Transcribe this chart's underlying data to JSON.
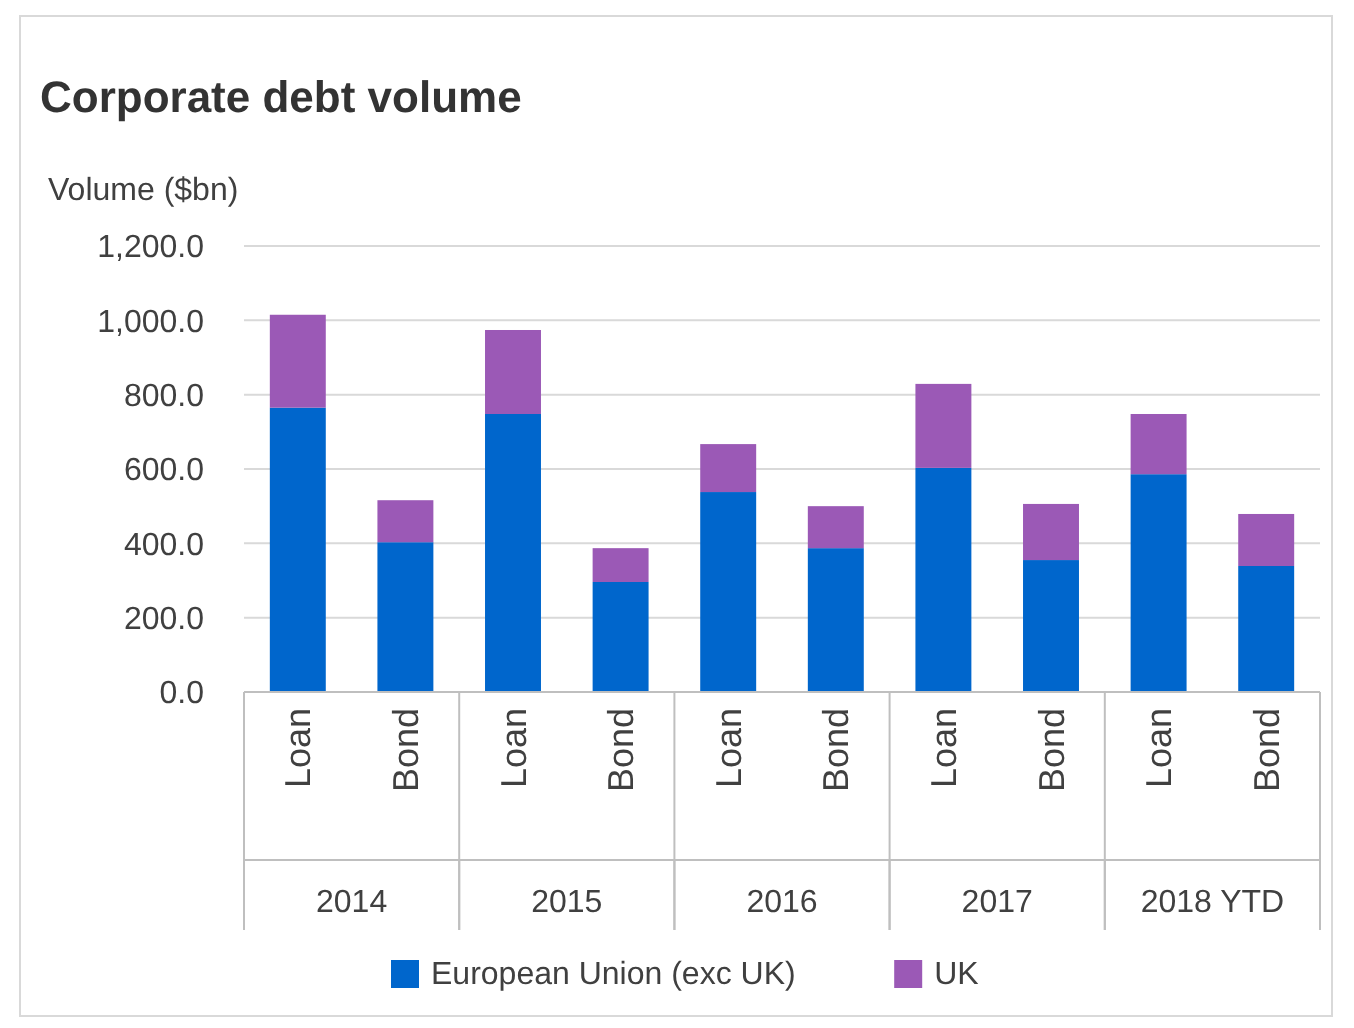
{
  "chart_data": {
    "type": "bar",
    "title": "Corporate debt volume",
    "ylabel": "Volume ($bn)",
    "stacked": true,
    "categories": [
      "Loan",
      "Bond",
      "Loan",
      "Bond",
      "Loan",
      "Bond",
      "Loan",
      "Bond",
      "Loan",
      "Bond"
    ],
    "annotations": [
      "2014",
      "2015",
      "2016",
      "2017",
      "2018 YTD"
    ],
    "series": [
      {
        "name": "European Union (exc UK)",
        "color": "#0066cc",
        "values": [
          765,
          403,
          748,
          296,
          538,
          387,
          603,
          355,
          586,
          339
        ]
      },
      {
        "name": "UK",
        "color": "#9b59b6",
        "values": [
          250,
          113,
          226,
          91,
          129,
          113,
          226,
          151,
          162,
          140
        ]
      }
    ],
    "ylim": [
      0,
      1200
    ],
    "yticks": [
      {
        "value": 0,
        "label": "0.0"
      },
      {
        "value": 200,
        "label": "200.0"
      },
      {
        "value": 400,
        "label": "400.0"
      },
      {
        "value": 600,
        "label": "600.0"
      },
      {
        "value": 800,
        "label": "800.0"
      },
      {
        "value": 1000,
        "label": "1,000.0"
      },
      {
        "value": 1200,
        "label": "1,200.0"
      }
    ],
    "grid": "y",
    "legend": "bottom"
  }
}
